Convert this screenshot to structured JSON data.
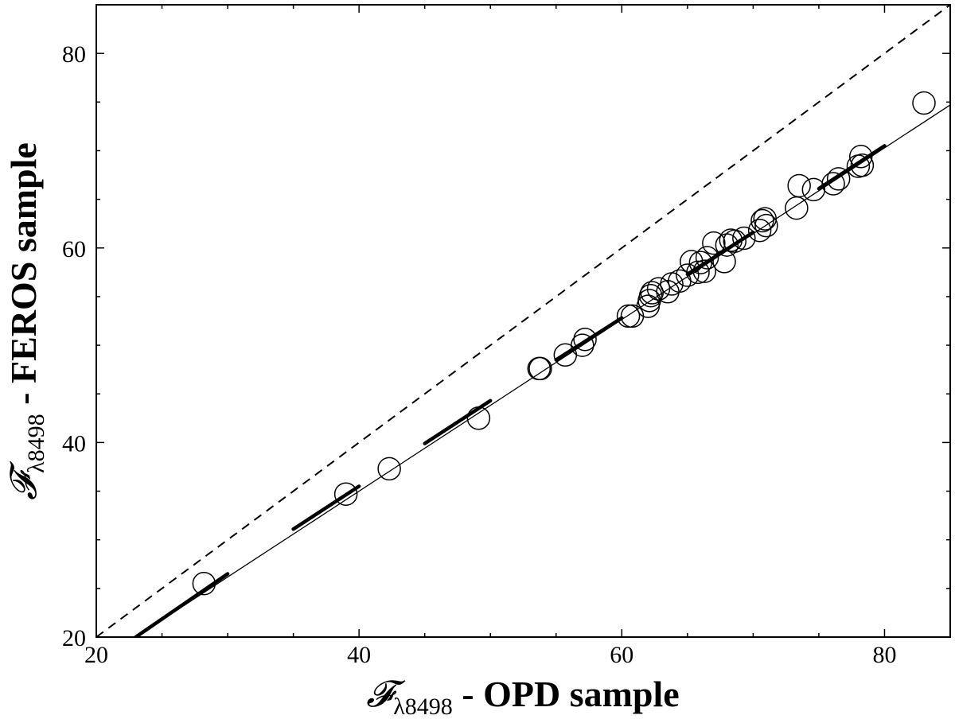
{
  "chart_data": {
    "type": "scatter",
    "xlabel": {
      "symbol": "𝓕",
      "subscript": "λ8498",
      "text": " - OPD sample"
    },
    "ylabel": {
      "symbol": "𝓕",
      "subscript": "λ8498",
      "text": " - FEROS sample"
    },
    "xlim": [
      20,
      85
    ],
    "ylim": [
      20,
      85
    ],
    "xticks": [
      20,
      40,
      60,
      80
    ],
    "yticks": [
      20,
      40,
      60,
      80
    ],
    "minor_step": 5,
    "grid": false,
    "legend": "none",
    "points": [
      [
        28.2,
        25.5
      ],
      [
        39.0,
        34.7
      ],
      [
        42.3,
        37.3
      ],
      [
        49.1,
        42.5
      ],
      [
        53.7,
        47.6
      ],
      [
        53.8,
        47.6
      ],
      [
        55.7,
        49.0
      ],
      [
        57.0,
        50.0
      ],
      [
        57.2,
        50.6
      ],
      [
        60.5,
        53.0
      ],
      [
        60.8,
        53.0
      ],
      [
        62.0,
        54.0
      ],
      [
        62.1,
        54.6
      ],
      [
        62.2,
        55.1
      ],
      [
        62.3,
        55.4
      ],
      [
        62.8,
        55.8
      ],
      [
        63.5,
        55.5
      ],
      [
        63.8,
        56.3
      ],
      [
        64.4,
        56.6
      ],
      [
        65.0,
        57.2
      ],
      [
        65.3,
        58.6
      ],
      [
        65.8,
        57.5
      ],
      [
        66.0,
        58.5
      ],
      [
        66.3,
        57.6
      ],
      [
        66.5,
        59.0
      ],
      [
        67.0,
        60.5
      ],
      [
        67.8,
        58.6
      ],
      [
        68.0,
        60.3
      ],
      [
        68.3,
        60.8
      ],
      [
        68.6,
        60.7
      ],
      [
        69.3,
        61.0
      ],
      [
        70.5,
        61.8
      ],
      [
        70.7,
        62.8
      ],
      [
        70.9,
        63.0
      ],
      [
        71.0,
        62.3
      ],
      [
        73.3,
        64.1
      ],
      [
        73.5,
        66.4
      ],
      [
        74.6,
        66.0
      ],
      [
        76.1,
        66.6
      ],
      [
        76.5,
        67.1
      ],
      [
        78.0,
        68.4
      ],
      [
        78.2,
        69.4
      ],
      [
        78.3,
        68.5
      ],
      [
        83.0,
        74.9
      ]
    ],
    "one_to_one_line": {
      "style": "dashed",
      "x": [
        20,
        85
      ],
      "y": [
        20,
        85
      ]
    },
    "fit_line": {
      "style": "solid-thin",
      "x": [
        23,
        85
      ],
      "y": [
        20,
        74.7
      ]
    },
    "fit_segments": [
      {
        "x": [
          23,
          30
        ],
        "y": [
          20,
          26.5
        ]
      },
      {
        "x": [
          35,
          40
        ],
        "y": [
          31.1,
          35.5
        ]
      },
      {
        "x": [
          45,
          50
        ],
        "y": [
          39.9,
          44.3
        ]
      },
      {
        "x": [
          55,
          60
        ],
        "y": [
          48.5,
          52.8
        ]
      },
      {
        "x": [
          65,
          70
        ],
        "y": [
          57.3,
          61.6
        ]
      },
      {
        "x": [
          75,
          80
        ],
        "y": [
          66.1,
          70.5
        ]
      }
    ],
    "colors": {
      "ink": "#000000",
      "background": "#ffffff"
    }
  }
}
